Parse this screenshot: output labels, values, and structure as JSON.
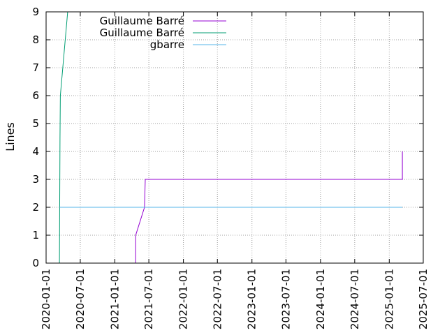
{
  "chart_data": {
    "type": "line",
    "title": "",
    "xlabel": "",
    "ylabel": "Lines",
    "xlim": [
      "2020-01-01",
      "2025-07-01"
    ],
    "ylim": [
      0,
      9
    ],
    "grid": true,
    "legend_position": "top-left",
    "x_ticks": [
      "2020-01-01",
      "2020-07-01",
      "2021-01-01",
      "2021-07-01",
      "2022-01-01",
      "2022-07-01",
      "2023-01-01",
      "2023-07-01",
      "2024-01-01",
      "2024-07-01",
      "2025-01-01",
      "2025-07-01"
    ],
    "y_ticks": [
      0,
      1,
      2,
      3,
      4,
      5,
      6,
      7,
      8,
      9
    ],
    "series": [
      {
        "name": "Guillaume Barré",
        "color": "#9400d3",
        "points": [
          {
            "x": "2021-04-22",
            "y": 0
          },
          {
            "x": "2021-04-22",
            "y": 1
          },
          {
            "x": "2021-06-08",
            "y": 2
          },
          {
            "x": "2021-06-12",
            "y": 3
          },
          {
            "x": "2025-03-12",
            "y": 3
          },
          {
            "x": "2025-03-12",
            "y": 4
          }
        ]
      },
      {
        "name": "Guillaume Barré",
        "color": "#009e73",
        "points": [
          {
            "x": "2020-03-12",
            "y": 0
          },
          {
            "x": "2020-03-15",
            "y": 4.5
          },
          {
            "x": "2020-03-17",
            "y": 6
          },
          {
            "x": "2020-04-25",
            "y": 9
          }
        ]
      },
      {
        "name": "gbarre",
        "color": "#56b4e9",
        "points": [
          {
            "x": "2020-03-12",
            "y": 2
          },
          {
            "x": "2025-03-12",
            "y": 2
          }
        ]
      }
    ]
  }
}
